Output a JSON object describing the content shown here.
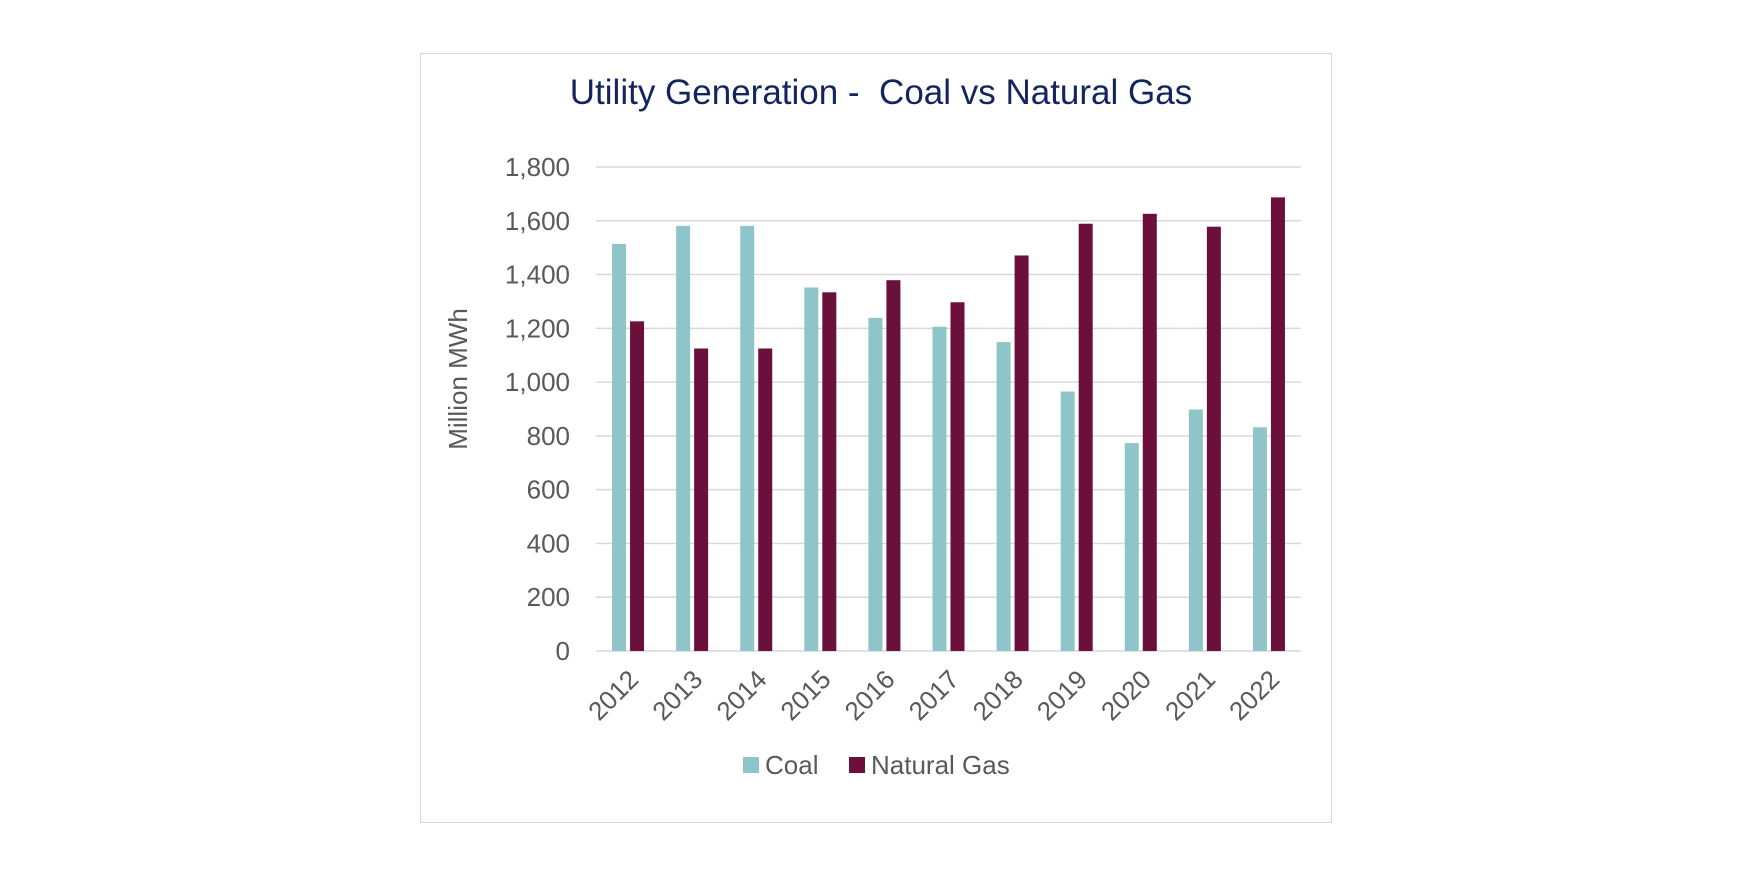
{
  "chart_data": {
    "type": "bar",
    "title": "Utility Generation -  Coal vs Natural Gas",
    "xlabel": "",
    "ylabel": "Million MWh",
    "ylim": [
      0,
      1800
    ],
    "y_ticks": [
      0,
      200,
      400,
      600,
      800,
      1000,
      1200,
      1400,
      1600,
      1800
    ],
    "y_tick_labels": [
      "0",
      "200",
      "400",
      "600",
      "800",
      "1,000",
      "1,200",
      "1,400",
      "1,600",
      "1,800"
    ],
    "categories": [
      "2012",
      "2013",
      "2014",
      "2015",
      "2016",
      "2017",
      "2018",
      "2019",
      "2020",
      "2021",
      "2022"
    ],
    "series": [
      {
        "name": "Coal",
        "color": "#8fc5c9",
        "values": [
          1514,
          1581,
          1581,
          1352,
          1239,
          1206,
          1149,
          965,
          773,
          898,
          832
        ]
      },
      {
        "name": "Natural Gas",
        "color": "#6b0f3b",
        "values": [
          1226,
          1125,
          1125,
          1334,
          1379,
          1297,
          1471,
          1589,
          1626,
          1578,
          1687
        ]
      }
    ],
    "grid": true,
    "legend_position": "bottom"
  }
}
